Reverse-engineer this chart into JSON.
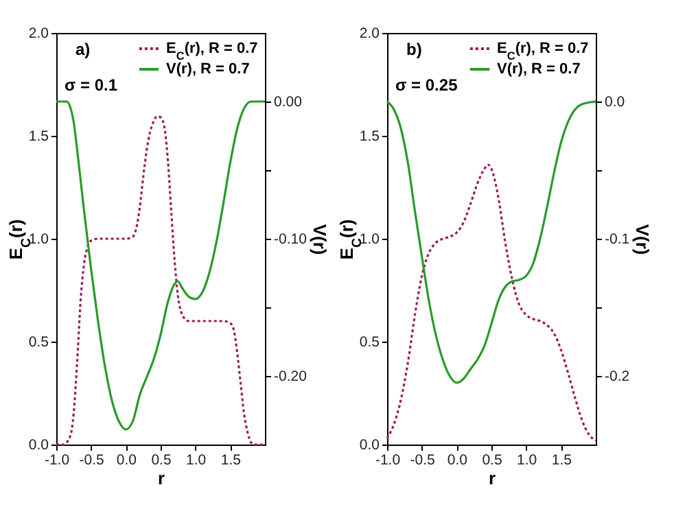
{
  "chart_data": [
    {
      "type": "line",
      "xlabel": "r",
      "ylabel": "E$_{C}$(r)",
      "y2label": "V(r)",
      "annotations": [
        "a)",
        "σ = 0.1"
      ],
      "legend": "top right",
      "xlim": [
        -1,
        2
      ],
      "xticks": [
        {
          "value": -1,
          "label": "-1.0"
        },
        {
          "value": -0.5,
          "label": "-0.5"
        },
        {
          "value": 0,
          "label": "0.0"
        },
        {
          "value": 0.5,
          "label": "0.5"
        },
        {
          "value": 1,
          "label": "1.0"
        },
        {
          "value": 1.5,
          "label": "1.5"
        }
      ],
      "ylim": [
        0,
        2
      ],
      "yticks": [
        {
          "value": 0,
          "label": "0.0"
        },
        {
          "value": 0.5,
          "label": "0.5"
        },
        {
          "value": 1,
          "label": "1.0"
        },
        {
          "value": 1.5,
          "label": "1.5"
        },
        {
          "value": 2,
          "label": "2.0"
        }
      ],
      "y2lim": [
        -0.25,
        0.05
      ],
      "y2ticks": [
        {
          "value": -0.2,
          "label": "-0.20"
        },
        {
          "value": -0.15,
          "label": null
        },
        {
          "value": -0.1,
          "label": "-0.10"
        },
        {
          "value": -0.05,
          "label": null
        },
        {
          "value": 0,
          "label": "0.00"
        }
      ],
      "series": [
        {
          "name": "E$_{C}$(r), R = 0.7",
          "color": "#9b1b5a",
          "line_style": "dotted",
          "x": [
            -1,
            -0.9,
            -0.8,
            -0.75,
            -0.7,
            -0.65,
            -0.6,
            -0.55,
            -0.5,
            -0.4,
            0,
            0.1,
            0.15,
            0.2,
            0.25,
            0.3,
            0.35,
            0.4,
            0.45,
            0.5,
            0.55,
            0.6,
            0.65,
            0.7,
            0.75,
            0.8,
            0.85,
            0.9,
            1.0,
            1.4,
            1.5,
            1.55,
            1.6,
            1.65,
            1.7,
            1.75,
            1.8,
            1.85,
            2
          ],
          "values": [
            0,
            0,
            0.04,
            0.15,
            0.4,
            0.7,
            0.88,
            0.96,
            0.99,
            1.0,
            1.0,
            1.01,
            1.05,
            1.15,
            1.3,
            1.43,
            1.52,
            1.57,
            1.595,
            1.59,
            1.55,
            1.4,
            1.15,
            0.9,
            0.72,
            0.64,
            0.61,
            0.6,
            0.6,
            0.6,
            0.59,
            0.56,
            0.45,
            0.3,
            0.15,
            0.06,
            0.01,
            0,
            0
          ]
        },
        {
          "name": "V(r), R = 0.7",
          "color": "#2a9a2a",
          "line_style": "solid",
          "axis": "y2",
          "x": [
            -1,
            -0.85,
            -0.8,
            -0.75,
            -0.7,
            -0.6,
            -0.5,
            -0.4,
            -0.3,
            -0.2,
            -0.1,
            0,
            0.1,
            0.2,
            0.3,
            0.4,
            0.5,
            0.6,
            0.7,
            0.75,
            0.8,
            0.9,
            1.0,
            1.1,
            1.2,
            1.3,
            1.4,
            1.5,
            1.6,
            1.7,
            1.8,
            2
          ],
          "values": [
            0,
            0,
            -0.004,
            -0.015,
            -0.035,
            -0.08,
            -0.122,
            -0.16,
            -0.193,
            -0.218,
            -0.233,
            -0.239,
            -0.233,
            -0.214,
            -0.201,
            -0.188,
            -0.17,
            -0.147,
            -0.133,
            -0.131,
            -0.135,
            -0.142,
            -0.144,
            -0.139,
            -0.125,
            -0.103,
            -0.075,
            -0.045,
            -0.02,
            -0.005,
            0,
            0
          ]
        }
      ]
    },
    {
      "type": "line",
      "xlabel": "r",
      "ylabel": "E$_{C}$(r)",
      "y2label": "V(r)",
      "annotations": [
        "b)",
        "σ = 0.25"
      ],
      "legend": "top right",
      "xlim": [
        -1,
        2
      ],
      "xticks": [
        {
          "value": -1,
          "label": "-1.0"
        },
        {
          "value": -0.5,
          "label": "-0.5"
        },
        {
          "value": 0,
          "label": "0.0"
        },
        {
          "value": 0.5,
          "label": "0.5"
        },
        {
          "value": 1,
          "label": "1.0"
        },
        {
          "value": 1.5,
          "label": "1.5"
        }
      ],
      "ylim": [
        0,
        2
      ],
      "yticks": [
        {
          "value": 0,
          "label": "0.0"
        },
        {
          "value": 0.5,
          "label": "0.5"
        },
        {
          "value": 1,
          "label": "1.0"
        },
        {
          "value": 1.5,
          "label": "1.5"
        },
        {
          "value": 2,
          "label": "2.0"
        }
      ],
      "y2lim": [
        -0.25,
        0.05
      ],
      "y2ticks": [
        {
          "value": -0.2,
          "label": "-0.2"
        },
        {
          "value": -0.15,
          "label": null
        },
        {
          "value": -0.1,
          "label": "-0.1"
        },
        {
          "value": -0.05,
          "label": null
        },
        {
          "value": 0,
          "label": "0.0"
        }
      ],
      "series": [
        {
          "name": "E$_{C}$(r), R = 0.7",
          "color": "#9b1b5a",
          "line_style": "dotted",
          "x": [
            -1,
            -0.9,
            -0.8,
            -0.7,
            -0.6,
            -0.5,
            -0.4,
            -0.3,
            -0.2,
            -0.1,
            0,
            0.1,
            0.2,
            0.3,
            0.4,
            0.45,
            0.5,
            0.6,
            0.7,
            0.8,
            0.9,
            1.0,
            1.1,
            1.2,
            1.3,
            1.4,
            1.5,
            1.6,
            1.7,
            1.8,
            1.9,
            2
          ],
          "values": [
            0.03,
            0.1,
            0.22,
            0.4,
            0.63,
            0.82,
            0.93,
            0.98,
            1.0,
            1.01,
            1.03,
            1.08,
            1.17,
            1.27,
            1.34,
            1.36,
            1.34,
            1.2,
            0.98,
            0.8,
            0.68,
            0.63,
            0.61,
            0.6,
            0.58,
            0.54,
            0.46,
            0.35,
            0.23,
            0.12,
            0.05,
            0.02
          ]
        },
        {
          "name": "V(r), R = 0.7",
          "color": "#2a9a2a",
          "line_style": "solid",
          "axis": "y2",
          "x": [
            -1,
            -0.9,
            -0.8,
            -0.7,
            -0.6,
            -0.5,
            -0.4,
            -0.3,
            -0.2,
            -0.1,
            0,
            0.1,
            0.2,
            0.3,
            0.4,
            0.5,
            0.6,
            0.7,
            0.8,
            0.9,
            1.0,
            1.1,
            1.2,
            1.3,
            1.4,
            1.5,
            1.6,
            1.7,
            1.8,
            2
          ],
          "values": [
            0,
            -0.006,
            -0.02,
            -0.045,
            -0.08,
            -0.113,
            -0.145,
            -0.17,
            -0.188,
            -0.2,
            -0.205,
            -0.202,
            -0.195,
            -0.188,
            -0.178,
            -0.162,
            -0.145,
            -0.135,
            -0.131,
            -0.13,
            -0.127,
            -0.118,
            -0.1,
            -0.077,
            -0.052,
            -0.03,
            -0.015,
            -0.006,
            -0.002,
            0
          ]
        }
      ]
    }
  ]
}
